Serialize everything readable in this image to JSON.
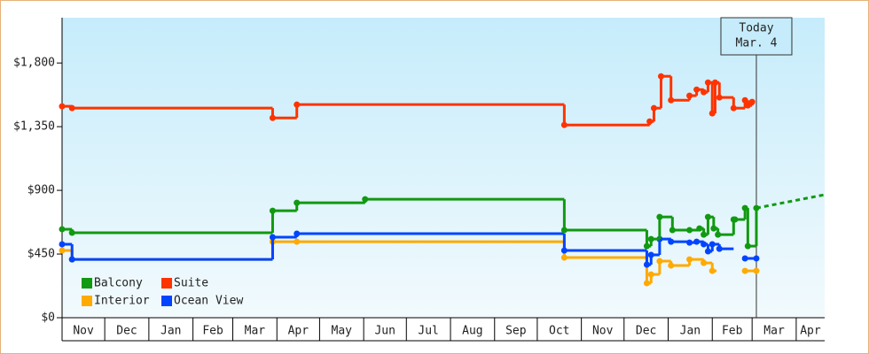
{
  "chart_data": {
    "type": "step",
    "xlim": [
      0,
      536
    ],
    "xticks": [
      0,
      30,
      61,
      92,
      120,
      151,
      181,
      212,
      242,
      273,
      304,
      334,
      365,
      395,
      426,
      457,
      485,
      516
    ],
    "months": [
      "Nov",
      "Dec",
      "Jan",
      "Feb",
      "Mar",
      "Apr",
      "May",
      "Jun",
      "Jul",
      "Aug",
      "Sep",
      "Oct",
      "Nov",
      "Dec",
      "Jan",
      "Feb",
      "Mar",
      "Apr"
    ],
    "ylim": [
      0,
      2120
    ],
    "yticks": [
      {
        "value": 0,
        "label": "$0"
      },
      {
        "value": 450,
        "label": "$450"
      },
      {
        "value": 900,
        "label": "$900"
      },
      {
        "value": 1350,
        "label": "$1,350"
      },
      {
        "value": 1800,
        "label": "$1,800"
      }
    ],
    "legend": "bottom-left",
    "series": [
      {
        "name": "Balcony",
        "color": "#119911",
        "x": [
          0,
          7,
          148,
          165,
          213,
          353,
          411,
          414,
          420,
          429,
          441,
          448,
          451,
          454,
          458,
          461,
          472,
          473,
          480,
          482,
          488
        ],
        "values": [
          625,
          600,
          756,
          812,
          837,
          619,
          506,
          556,
          712,
          619,
          619,
          631,
          587,
          712,
          631,
          587,
          694,
          694,
          775,
          506,
          775
        ]
      },
      {
        "name": "Suite",
        "color": "#ff3300",
        "x": [
          0,
          7,
          148,
          165,
          353,
          413,
          416,
          421,
          428,
          441,
          446,
          451,
          454,
          457,
          459,
          462,
          472,
          480,
          482,
          485
        ],
        "values": [
          1494,
          1481,
          1412,
          1506,
          1362,
          1387,
          1481,
          1706,
          1537,
          1569,
          1612,
          1594,
          1662,
          1444,
          1662,
          1556,
          1481,
          1537,
          1500,
          1525
        ]
      },
      {
        "name": "Interior",
        "color": "#ffaa00",
        "x": [
          0,
          7,
          148,
          165,
          353,
          411,
          414,
          420,
          428,
          441,
          451,
          457,
          460,
          480,
          488
        ],
        "values": [
          475,
          412,
          537,
          537,
          425,
          244,
          306,
          400,
          369,
          412,
          387,
          331,
          null,
          331,
          331
        ]
      },
      {
        "name": "Ocean View",
        "color": "#0044ff",
        "x": [
          0,
          7,
          148,
          165,
          353,
          411,
          414,
          420,
          428,
          441,
          446,
          451,
          454,
          457,
          462,
          472,
          480,
          488
        ],
        "values": [
          519,
          412,
          569,
          594,
          475,
          375,
          444,
          556,
          537,
          531,
          537,
          519,
          469,
          519,
          487,
          null,
          419,
          419
        ]
      }
    ],
    "projection": {
      "color": "#119911",
      "x": [
        488,
        536
      ],
      "values": [
        775,
        869
      ],
      "dashed": true
    },
    "annotation": {
      "x": 488,
      "lines": [
        "Today",
        "Mar. 4"
      ]
    }
  }
}
